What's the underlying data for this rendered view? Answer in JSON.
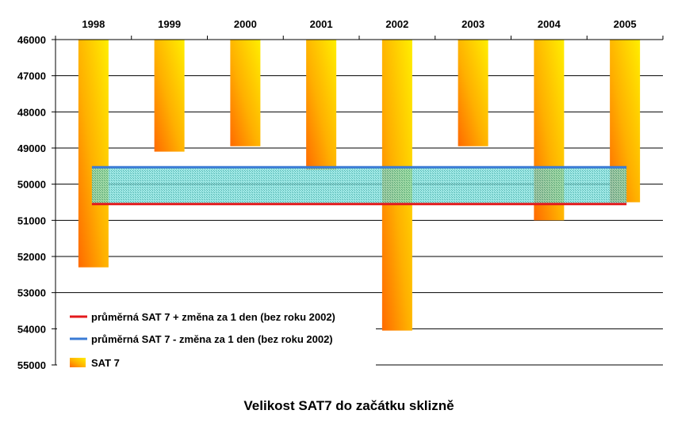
{
  "chart_data": {
    "type": "bar",
    "title": "Velikost SAT7 do začátku sklizně",
    "orientation": "y-axis reversed (values increase downward), x-axis labels on top",
    "categories": [
      "1998",
      "1999",
      "2000",
      "2001",
      "2002",
      "2003",
      "2004",
      "2005"
    ],
    "series": [
      {
        "name": "SAT 7",
        "values": [
          52300,
          49100,
          48950,
          49600,
          54050,
          48950,
          51000,
          50500
        ]
      }
    ],
    "reference_lines": [
      {
        "name": "průměrná SAT 7 + změna za 1 den (bez roku 2002)",
        "value": 50550,
        "color": "#e31a1c"
      },
      {
        "name": "průměrná SAT 7 - změna za 1 den (bez roku 2002)",
        "value": 49530,
        "color": "#3a7bd5"
      }
    ],
    "ylim": [
      46000,
      55000
    ],
    "yticks": [
      "46000",
      "47000",
      "48000",
      "49000",
      "50000",
      "51000",
      "52000",
      "53000",
      "54000",
      "55000"
    ],
    "grid": true,
    "legend_position": "bottom-left",
    "colors": {
      "bar_light": "#ffee00",
      "bar_dark": "#ff6a00",
      "band_fill": "#29c6c0"
    }
  }
}
